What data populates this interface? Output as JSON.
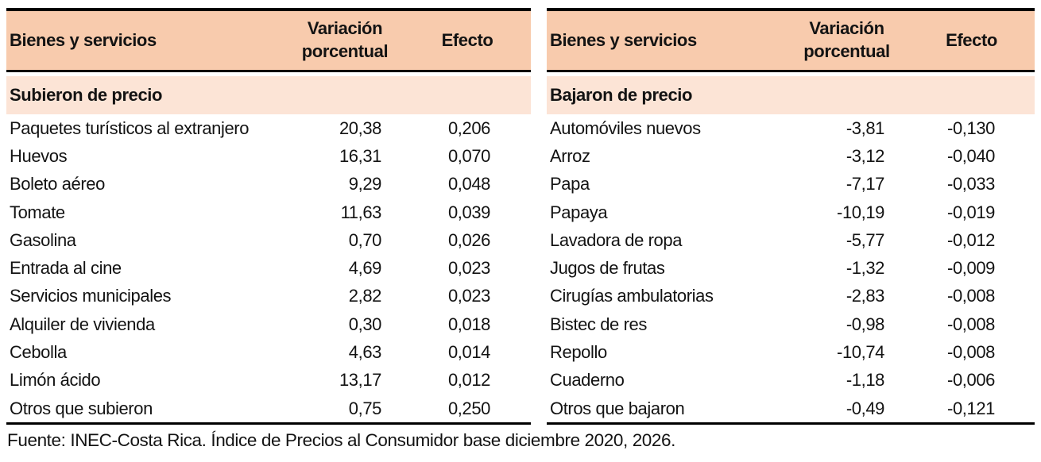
{
  "colors": {
    "header_bg": "#F8CBAD",
    "section_bg": "#FCE4D6",
    "border": "#000000",
    "text": "#131313"
  },
  "source_note": "Fuente: INEC-Costa Rica. Índice de Precios al Consumidor base diciembre 2020, 2026.",
  "tables": [
    {
      "headers": {
        "item": "Bienes y servicios",
        "variation": "Variación porcentual",
        "effect": "Efecto"
      },
      "section_label": "Subieron de precio",
      "rows": [
        {
          "item": "Paquetes turísticos al extranjero",
          "variation": "20,38",
          "effect": "0,206"
        },
        {
          "item": "Huevos",
          "variation": "16,31",
          "effect": "0,070"
        },
        {
          "item": "Boleto aéreo",
          "variation": "9,29",
          "effect": "0,048"
        },
        {
          "item": "Tomate",
          "variation": "11,63",
          "effect": "0,039"
        },
        {
          "item": "Gasolina",
          "variation": "0,70",
          "effect": "0,026"
        },
        {
          "item": "Entrada al cine",
          "variation": "4,69",
          "effect": "0,023"
        },
        {
          "item": "Servicios municipales",
          "variation": "2,82",
          "effect": "0,023"
        },
        {
          "item": "Alquiler de vivienda",
          "variation": "0,30",
          "effect": "0,018"
        },
        {
          "item": "Cebolla",
          "variation": "4,63",
          "effect": "0,014"
        },
        {
          "item": "Limón ácido",
          "variation": "13,17",
          "effect": "0,012"
        },
        {
          "item": "Otros que subieron",
          "variation": "0,75",
          "effect": "0,250"
        }
      ]
    },
    {
      "headers": {
        "item": "Bienes y servicios",
        "variation": "Variación porcentual",
        "effect": "Efecto"
      },
      "section_label": "Bajaron de precio",
      "rows": [
        {
          "item": "Automóviles nuevos",
          "variation": "-3,81",
          "effect": "-0,130"
        },
        {
          "item": "Arroz",
          "variation": "-3,12",
          "effect": "-0,040"
        },
        {
          "item": "Papa",
          "variation": "-7,17",
          "effect": "-0,033"
        },
        {
          "item": "Papaya",
          "variation": "-10,19",
          "effect": "-0,019"
        },
        {
          "item": "Lavadora de ropa",
          "variation": "-5,77",
          "effect": "-0,012"
        },
        {
          "item": "Jugos de frutas",
          "variation": "-1,32",
          "effect": "-0,009"
        },
        {
          "item": "Cirugías ambulatorias",
          "variation": "-2,83",
          "effect": "-0,008"
        },
        {
          "item": "Bistec de res",
          "variation": "-0,98",
          "effect": "-0,008"
        },
        {
          "item": "Repollo",
          "variation": "-10,74",
          "effect": "-0,008"
        },
        {
          "item": "Cuaderno",
          "variation": "-1,18",
          "effect": "-0,006"
        },
        {
          "item": "Otros que bajaron",
          "variation": "-0,49",
          "effect": "-0,121"
        }
      ]
    }
  ],
  "chart_data": [
    {
      "type": "table",
      "title": "Subieron de precio",
      "columns": [
        "Bienes y servicios",
        "Variación porcentual",
        "Efecto"
      ],
      "rows": [
        [
          "Paquetes turísticos al extranjero",
          20.38,
          0.206
        ],
        [
          "Huevos",
          16.31,
          0.07
        ],
        [
          "Boleto aéreo",
          9.29,
          0.048
        ],
        [
          "Tomate",
          11.63,
          0.039
        ],
        [
          "Gasolina",
          0.7,
          0.026
        ],
        [
          "Entrada al cine",
          4.69,
          0.023
        ],
        [
          "Servicios municipales",
          2.82,
          0.023
        ],
        [
          "Alquiler de vivienda",
          0.3,
          0.018
        ],
        [
          "Cebolla",
          4.63,
          0.014
        ],
        [
          "Limón ácido",
          13.17,
          0.012
        ],
        [
          "Otros que subieron",
          0.75,
          0.25
        ]
      ]
    },
    {
      "type": "table",
      "title": "Bajaron de precio",
      "columns": [
        "Bienes y servicios",
        "Variación porcentual",
        "Efecto"
      ],
      "rows": [
        [
          "Automóviles nuevos",
          -3.81,
          -0.13
        ],
        [
          "Arroz",
          -3.12,
          -0.04
        ],
        [
          "Papa",
          -7.17,
          -0.033
        ],
        [
          "Papaya",
          -10.19,
          -0.019
        ],
        [
          "Lavadora de ropa",
          -5.77,
          -0.012
        ],
        [
          "Jugos de frutas",
          -1.32,
          -0.009
        ],
        [
          "Cirugías ambulatorias",
          -2.83,
          -0.008
        ],
        [
          "Bistec de res",
          -0.98,
          -0.008
        ],
        [
          "Repollo",
          -10.74,
          -0.008
        ],
        [
          "Cuaderno",
          -1.18,
          -0.006
        ],
        [
          "Otros que bajaron",
          -0.49,
          -0.121
        ]
      ]
    }
  ]
}
